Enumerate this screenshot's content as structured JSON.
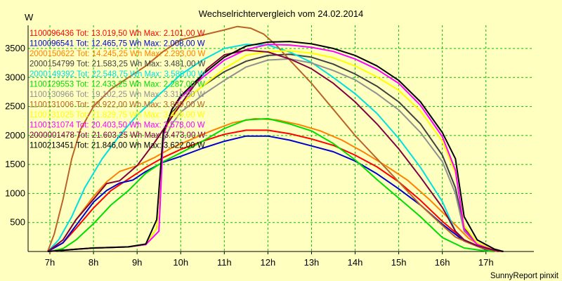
{
  "chart_data": {
    "type": "line",
    "title": "Wechselrichtervergleich vom 24.02.2014",
    "ylabel": "W",
    "xlabel": "",
    "footer": "SunnyReport pinxit",
    "ylim": [
      0,
      3900
    ],
    "xlim": [
      6.5,
      18.1
    ],
    "yticks": [
      500,
      1000,
      1500,
      2000,
      2500,
      3000,
      3500
    ],
    "xticks": [
      {
        "x": 7,
        "label": "7h"
      },
      {
        "x": 8,
        "label": "8h"
      },
      {
        "x": 9,
        "label": "9h"
      },
      {
        "x": 10,
        "label": "10h"
      },
      {
        "x": 11,
        "label": "11h"
      },
      {
        "x": 12,
        "label": "12h"
      },
      {
        "x": 13,
        "label": "13h"
      },
      {
        "x": 14,
        "label": "14h"
      },
      {
        "x": 15,
        "label": "15h"
      },
      {
        "x": 16,
        "label": "16h"
      },
      {
        "x": 17,
        "label": "17h"
      }
    ],
    "grid": true,
    "legend_position": "top-left",
    "series": [
      {
        "name": "1100096436",
        "label": "1100096436 Tot: 13.019,50 Wh Max: 2.101,00 W",
        "color": "#ff0000",
        "x": [
          6.95,
          7.3,
          7.6,
          8.0,
          8.4,
          8.8,
          9.2,
          9.6,
          10.0,
          10.5,
          11.0,
          11.5,
          12.0,
          12.5,
          13.0,
          13.5,
          14.0,
          14.5,
          15.0,
          15.5,
          16.0,
          16.5,
          17.0,
          17.3
        ],
        "y": [
          0,
          150,
          400,
          750,
          1050,
          1250,
          1450,
          1620,
          1760,
          1900,
          2020,
          2090,
          2090,
          2030,
          1940,
          1830,
          1660,
          1460,
          1200,
          880,
          520,
          200,
          30,
          0
        ]
      },
      {
        "name": "1100096541",
        "label": "1100096541 Tot: 12.465,75 Wh Max: 2.008,00 W",
        "color": "#0000d0",
        "x": [
          6.95,
          7.3,
          7.6,
          8.0,
          8.3,
          8.6,
          8.9,
          9.2,
          9.6,
          10.0,
          10.5,
          11.0,
          11.5,
          12.0,
          12.5,
          13.0,
          13.5,
          14.0,
          14.5,
          15.0,
          15.5,
          16.0,
          16.5,
          17.0,
          17.3
        ],
        "y": [
          0,
          150,
          450,
          850,
          1050,
          1180,
          1230,
          1380,
          1540,
          1640,
          1780,
          1900,
          1990,
          1990,
          1920,
          1820,
          1720,
          1560,
          1340,
          1080,
          800,
          470,
          180,
          30,
          0
        ]
      },
      {
        "name": "2000150622",
        "label": "2000150622 Tot: 14.245,25 Wh Max: 2.293,00 W",
        "color": "#ff8000",
        "x": [
          6.95,
          7.3,
          7.6,
          8.0,
          8.3,
          8.6,
          9.0,
          9.4,
          9.8,
          10.2,
          10.7,
          11.2,
          11.7,
          12.2,
          12.7,
          13.2,
          13.7,
          14.2,
          14.7,
          15.2,
          15.7,
          16.2,
          16.6,
          17.0,
          17.3
        ],
        "y": [
          0,
          200,
          550,
          950,
          1200,
          1380,
          1480,
          1620,
          1790,
          1920,
          2080,
          2220,
          2290,
          2270,
          2190,
          2080,
          1920,
          1710,
          1480,
          1230,
          900,
          530,
          230,
          40,
          0
        ]
      },
      {
        "name": "2000154799",
        "label": "2000154799 Tot: 21.583,25 Wh Max: 3.481,00 W",
        "color": "#404040",
        "x": [
          6.95,
          7.3,
          7.6,
          8.0,
          8.4,
          8.8,
          9.2,
          9.45,
          9.6,
          9.8,
          10.0,
          10.5,
          11.0,
          11.5,
          12.0,
          12.5,
          13.0,
          13.5,
          14.0,
          14.5,
          15.0,
          15.5,
          16.0,
          16.3,
          16.5,
          16.8,
          17.2,
          17.4
        ],
        "y": [
          0,
          20,
          40,
          60,
          70,
          80,
          120,
          400,
          2000,
          2400,
          2550,
          2850,
          3100,
          3280,
          3380,
          3400,
          3350,
          3230,
          3060,
          2850,
          2580,
          2200,
          1660,
          1100,
          400,
          150,
          30,
          0
        ]
      },
      {
        "name": "2000149392",
        "label": "2000149392 Tot: 22.548,75 Wh Max: 3.586,00 W",
        "color": "#00e0e0",
        "x": [
          6.95,
          7.2,
          7.5,
          7.8,
          8.2,
          8.6,
          9.0,
          9.5,
          10.0,
          10.5,
          11.0,
          11.5,
          12.0,
          12.5,
          13.0,
          13.5,
          14.0,
          14.5,
          15.0,
          15.5,
          16.0,
          16.3,
          16.5,
          16.8,
          17.2,
          17.4
        ],
        "y": [
          0,
          200,
          600,
          1100,
          1600,
          2000,
          2350,
          2700,
          3050,
          3300,
          3500,
          3570,
          3560,
          3440,
          3260,
          3000,
          2720,
          2380,
          1950,
          1450,
          860,
          350,
          200,
          100,
          20,
          0
        ]
      },
      {
        "name": "1100129553",
        "label": "1100129553 Tot: 12.433,25 Wh Max: 2.287,00 W",
        "color": "#00dd00",
        "x": [
          7.0,
          7.3,
          7.6,
          8.0,
          8.4,
          8.8,
          9.2,
          9.6,
          10.0,
          10.5,
          11.0,
          11.5,
          12.0,
          12.5,
          13.0,
          13.5,
          14.0,
          14.5,
          15.0,
          15.5,
          16.0,
          16.5,
          17.0,
          17.2
        ],
        "y": [
          0,
          50,
          200,
          480,
          800,
          1050,
          1350,
          1550,
          1700,
          1900,
          2120,
          2270,
          2290,
          2200,
          2080,
          1860,
          1580,
          1240,
          920,
          600,
          240,
          60,
          10,
          0
        ]
      },
      {
        "name": "1100130966",
        "label": "1100130966 Tot: 19.102,25 Wh Max: 3.318,00 W",
        "color": "#909090",
        "x": [
          6.95,
          7.3,
          7.6,
          8.0,
          8.4,
          8.8,
          9.2,
          9.45,
          9.6,
          9.8,
          10.0,
          10.5,
          11.0,
          11.5,
          12.0,
          12.5,
          13.0,
          13.5,
          14.0,
          14.5,
          15.0,
          15.5,
          16.0,
          16.3,
          16.5,
          16.8,
          17.2,
          17.4
        ],
        "y": [
          0,
          20,
          40,
          60,
          70,
          80,
          120,
          400,
          1900,
          2200,
          2400,
          2700,
          2950,
          3180,
          3300,
          3320,
          3250,
          3120,
          2960,
          2720,
          2440,
          2050,
          1550,
          1000,
          350,
          130,
          20,
          0
        ]
      },
      {
        "name": "1100131006",
        "label": "1100131006 Tot: 23.922,00 Wh Max: 3.889,00 W",
        "color": "#b86428",
        "x": [
          6.95,
          7.1,
          7.3,
          7.5,
          7.7,
          8.0,
          8.4,
          8.8,
          9.2,
          9.6,
          10.0,
          10.5,
          11.0,
          11.3,
          11.6,
          11.9,
          12.2,
          12.5,
          13.0,
          13.5,
          14.0,
          14.5,
          15.0,
          15.5,
          16.0,
          16.3,
          16.6,
          16.9,
          17.2,
          17.4
        ],
        "y": [
          0,
          300,
          900,
          1600,
          2100,
          2500,
          2800,
          3000,
          3200,
          3450,
          3650,
          3730,
          3820,
          3880,
          3850,
          3750,
          3550,
          3300,
          2900,
          2450,
          2000,
          1600,
          1200,
          800,
          450,
          250,
          150,
          60,
          10,
          0
        ]
      },
      {
        "name": "1100131025",
        "label": "1100131025 Tot: 21.829,75 Wh Max: 3.469,00 W",
        "color": "#ffff00",
        "x": [
          6.95,
          7.3,
          7.6,
          8.0,
          8.4,
          8.8,
          9.2,
          9.45,
          9.6,
          9.8,
          10.0,
          10.5,
          11.0,
          11.5,
          12.0,
          12.5,
          13.0,
          13.5,
          14.0,
          14.5,
          15.0,
          15.5,
          16.0,
          16.3,
          16.5,
          16.8,
          17.2,
          17.4
        ],
        "y": [
          0,
          20,
          40,
          60,
          70,
          80,
          120,
          400,
          2000,
          2350,
          2550,
          2850,
          3150,
          3380,
          3450,
          3460,
          3420,
          3340,
          3200,
          3010,
          2780,
          2420,
          1900,
          1350,
          450,
          150,
          30,
          0
        ]
      },
      {
        "name": "1100131074",
        "label": "1100131074 Tot: 20.403,50 Wh Max: 3.578,00 W",
        "color": "#ff00ff",
        "x": [
          6.95,
          7.3,
          7.6,
          8.0,
          8.4,
          8.8,
          9.2,
          9.5,
          9.6,
          9.8,
          10.0,
          10.5,
          11.0,
          11.5,
          12.0,
          12.5,
          13.0,
          13.5,
          14.0,
          14.5,
          15.0,
          15.5,
          16.0,
          16.3,
          16.5,
          16.8,
          17.2,
          17.4
        ],
        "y": [
          0,
          20,
          40,
          60,
          70,
          80,
          120,
          350,
          2000,
          2450,
          2650,
          3000,
          3300,
          3480,
          3570,
          3560,
          3520,
          3450,
          3320,
          3140,
          2900,
          2520,
          1980,
          1400,
          380,
          120,
          20,
          0
        ]
      },
      {
        "name": "2000001478",
        "label": "2000001478 Tot: 21.603,25 Wh Max: 3.473,00 W",
        "color": "#800040",
        "x": [
          6.95,
          7.3,
          7.6,
          8.0,
          8.3,
          8.6,
          9.0,
          9.4,
          9.8,
          10.2,
          10.6,
          11.0,
          11.5,
          12.0,
          12.5,
          13.0,
          13.5,
          14.0,
          14.5,
          15.0,
          15.5,
          16.0,
          16.3,
          16.5,
          16.8,
          17.2,
          17.4
        ],
        "y": [
          0,
          200,
          550,
          900,
          1170,
          1220,
          1480,
          1880,
          2320,
          2750,
          3150,
          3390,
          3470,
          3440,
          3320,
          3150,
          2900,
          2580,
          2200,
          1770,
          1280,
          760,
          350,
          200,
          100,
          20,
          0
        ]
      },
      {
        "name": "1100213451",
        "label": "1100213451 Tot: 21.846,00 Wh Max: 3.622,00 W",
        "color": "#000000",
        "x": [
          6.95,
          7.3,
          7.6,
          8.0,
          8.4,
          8.8,
          9.2,
          9.45,
          9.6,
          9.8,
          10.0,
          10.5,
          11.0,
          11.5,
          12.0,
          12.5,
          13.0,
          13.5,
          14.0,
          14.5,
          15.0,
          15.5,
          16.0,
          16.3,
          16.5,
          16.8,
          17.2,
          17.4
        ],
        "y": [
          0,
          20,
          40,
          60,
          70,
          80,
          130,
          550,
          2050,
          2450,
          2680,
          3050,
          3350,
          3540,
          3610,
          3620,
          3580,
          3500,
          3380,
          3200,
          2950,
          2580,
          2050,
          1600,
          600,
          200,
          40,
          0
        ]
      }
    ]
  }
}
